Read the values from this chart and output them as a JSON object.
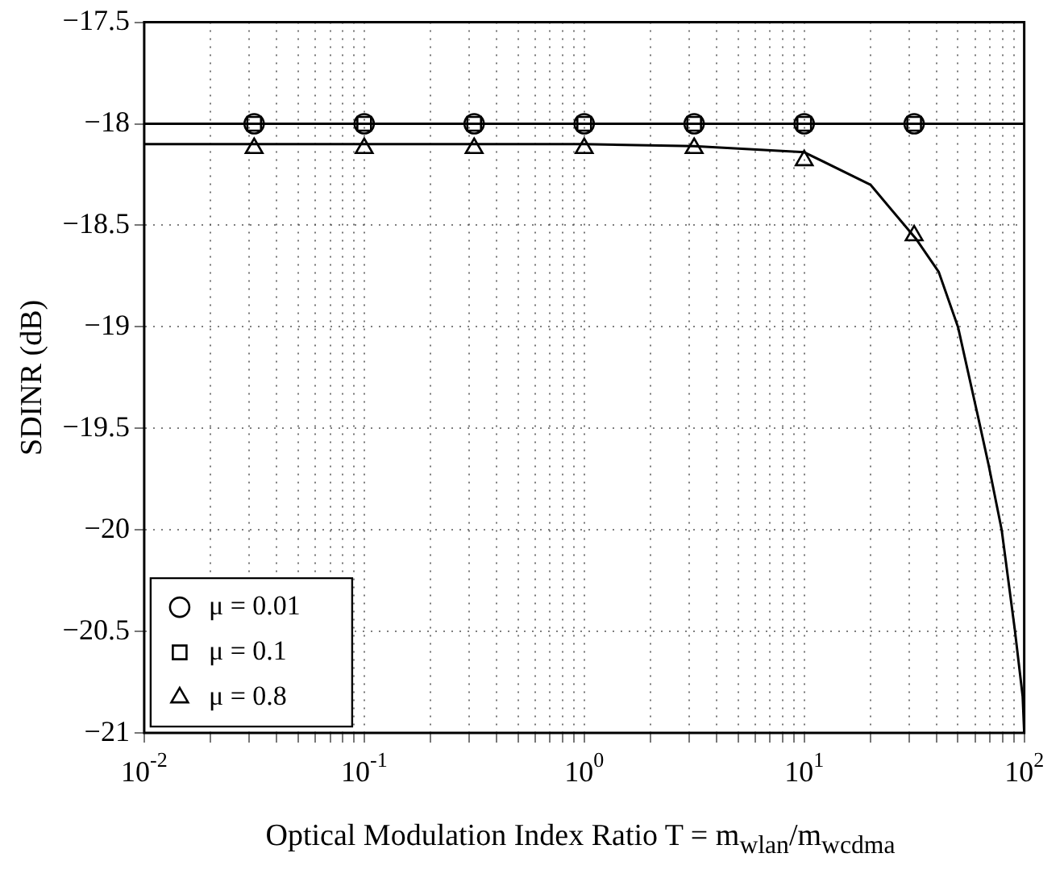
{
  "chart_data": {
    "type": "scatter",
    "xlabel": "Optical Modulation Index Ratio T = m$_{wlan}$/m$_{wcdma}$",
    "ylabel": "SDINR (dB)",
    "log": "x",
    "grid": true,
    "legend": "bottom left",
    "xlim": [
      0.01,
      100
    ],
    "xticks": [
      {
        "value": 0.01,
        "label": "10$^{-2}$"
      },
      {
        "value": 0.1,
        "label": "10$^{-1}$"
      },
      {
        "value": 1,
        "label": "10$^{0}$"
      },
      {
        "value": 10,
        "label": "10$^{1}$"
      },
      {
        "value": 100,
        "label": "10$^{2}$"
      }
    ],
    "ylim": [
      -21,
      -17.5
    ],
    "yticks": [
      -21,
      -20.5,
      -20,
      -19.5,
      -19,
      -18.5,
      -18,
      -17.5
    ],
    "series": [
      {
        "type": "line",
        "color": "#000000",
        "line_style": "solid",
        "marker": "none",
        "x": [
          0.01,
          100
        ],
        "values": [
          -18,
          -18
        ]
      },
      {
        "type": "line",
        "color": "#000000",
        "line_style": "solid",
        "marker": "none",
        "x": [
          0.01,
          1,
          3.16,
          10,
          20,
          32.4,
          40.9,
          50,
          61.6,
          68.9,
          79,
          90.6,
          98.4,
          100
        ],
        "values": [
          -18.1,
          -18.1,
          -18.11,
          -18.14,
          -18.3,
          -18.57,
          -18.73,
          -19,
          -19.44,
          -19.68,
          -20,
          -20.49,
          -20.82,
          -21
        ]
      },
      {
        "name": "μ = 0.01",
        "color": "#000000",
        "marker": "circle",
        "x": [
          0.0316,
          0.1,
          0.316,
          1,
          3.16,
          10,
          31.6
        ],
        "values": [
          -18,
          -18,
          -18,
          -18,
          -18,
          -18,
          -18
        ]
      },
      {
        "name": "μ = 0.1",
        "color": "#000000",
        "marker": "square",
        "x": [
          0.0316,
          0.1,
          0.316,
          1,
          3.16,
          10,
          31.6
        ],
        "values": [
          -18,
          -18,
          -18,
          -18,
          -18,
          -18,
          -18
        ]
      },
      {
        "name": "μ = 0.8",
        "color": "#000000",
        "marker": "triangle",
        "x": [
          0.0316,
          0.1,
          0.316,
          1,
          3.16,
          10,
          31.6
        ],
        "values": [
          -18.12,
          -18.12,
          -18.12,
          -18.12,
          -18.12,
          -18.18,
          -18.55
        ]
      }
    ]
  }
}
